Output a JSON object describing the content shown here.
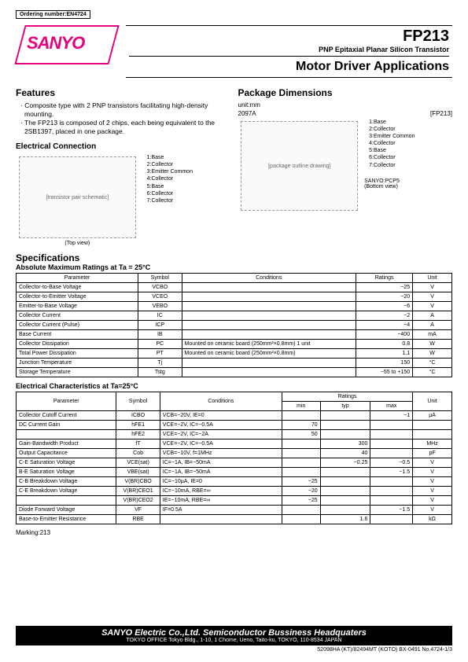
{
  "ordering": "Ordering number:EN4724",
  "logo": "SANYO",
  "part_no": "FP213",
  "subtitle": "PNP Epitaxial Planar Silicon Transistor",
  "app_title": "Motor Driver Applications",
  "features_head": "Features",
  "features": [
    "· Composite type with 2 PNP transistors facilitating high-density mounting.",
    "· The FP213 is composed of 2 chips, each being equivalent to the 2SB1397, placed in one package."
  ],
  "elec_conn_head": "Electrical Connection",
  "pins": [
    "1:Base",
    "2:Collector",
    "3:Emitter Common",
    "4:Collector",
    "5:Base",
    "6:Collector",
    "7:Collector"
  ],
  "top_view": "(Top view)",
  "pkg_head": "Package Dimensions",
  "pkg_unit": "unit:mm",
  "pkg_code": "2097A",
  "pkg_label": "[FP213]",
  "pkg_foot": "SANYO:PCP5",
  "bottom_view": "(Bottom view)",
  "spec_head": "Specifications",
  "abs_head": "Absolute Maximum Ratings at Ta = 25°C",
  "abs_cols": [
    "Parameter",
    "Symbol",
    "Conditions",
    "Ratings",
    "Unit"
  ],
  "abs_rows": [
    [
      "Collector-to-Base Voltage",
      "VCBO",
      "",
      "−25",
      "V"
    ],
    [
      "Collector-to-Emitter Voltage",
      "VCEO",
      "",
      "−20",
      "V"
    ],
    [
      "Emitter-to-Base Voltage",
      "VEBO",
      "",
      "−6",
      "V"
    ],
    [
      "Collector Current",
      "IC",
      "",
      "−2",
      "A"
    ],
    [
      "Collector Current (Pulse)",
      "ICP",
      "",
      "−4",
      "A"
    ],
    [
      "Base Current",
      "IB",
      "",
      "−400",
      "mA"
    ],
    [
      "Collector Dissipation",
      "PC",
      "Mounted on ceramic board (250mm²×0.8mm) 1 unit",
      "0.8",
      "W"
    ],
    [
      "Total Power Dissipation",
      "PT",
      "Mounted on ceramic board (250mm²×0.8mm)",
      "1.1",
      "W"
    ],
    [
      "Junction Temperature",
      "Tj",
      "",
      "150",
      "°C"
    ],
    [
      "Storage Temperature",
      "Tstg",
      "",
      "−55 to +150",
      "°C"
    ]
  ],
  "elec_head": "Electrical Characteristics at Ta=25°C",
  "elec_cols": [
    "Parameter",
    "Symbol",
    "Conditions",
    "min",
    "typ",
    "max",
    "Unit"
  ],
  "ratings_label": "Ratings",
  "elec_rows": [
    [
      "Collector Cutoff Current",
      "ICBO",
      "VCB=−20V, IE=0",
      "",
      "",
      "−1",
      "µA"
    ],
    [
      "DC Current Gain",
      "hFE1",
      "VCE=−2V, IC=−0.5A",
      "70",
      "",
      "",
      ""
    ],
    [
      "",
      "hFE2",
      "VCE=−2V, IC=−2A",
      "50",
      "",
      "",
      ""
    ],
    [
      "Gain-Bandwidth Product",
      "fT",
      "VCE=−2V, IC=−0.5A",
      "",
      "300",
      "",
      "MHz"
    ],
    [
      "Output Capacitance",
      "Cob",
      "VCB=−10V, f=1MHz",
      "",
      "40",
      "",
      "pF"
    ],
    [
      "C-E Saturation Voltage",
      "VCE(sat)",
      "IC=−1A, IB=−50mA",
      "",
      "−0.25",
      "−0.5",
      "V"
    ],
    [
      "B-E Saturation Voltage",
      "VBE(sat)",
      "IC=−1A, IB=−50mA",
      "",
      "",
      "−1.5",
      "V"
    ],
    [
      "C-B Breakdown Voltage",
      "V(BR)CBO",
      "IC=−10µA, IE=0",
      "−25",
      "",
      "",
      "V"
    ],
    [
      "C-E Breakdown Voltage",
      "V(BR)CEO1",
      "IC=−10mA, RBE=∞",
      "−20",
      "",
      "",
      "V"
    ],
    [
      "",
      "V(BR)CEO2",
      "IE=−10mA, RBE=∞",
      "−25",
      "",
      "",
      "V"
    ],
    [
      "Diode Forward Voltage",
      "VF",
      "IF=0.5A",
      "",
      "",
      "−1.5",
      "V"
    ],
    [
      "Base-to-Emitter Resistance",
      "RBE",
      "",
      "",
      "1.6",
      "",
      "kΩ"
    ]
  ],
  "marking": "Marking:213",
  "footer_l1": "SANYO Electric Co.,Ltd. Semiconductor Bussiness Headquaters",
  "footer_l2": "TOKYO OFFICE Tokyo Bldg., 1-10, 1 Chome, Ueno, Taito-ku, TOKYO, 110-8534 JAPAN",
  "footer_note": "52098HA (KT)/82494MT (KOTO) BX-0491  No.4724-1/3",
  "diagram_note1": "[transistor pair schematic]",
  "diagram_note2": "[package outline drawing]"
}
